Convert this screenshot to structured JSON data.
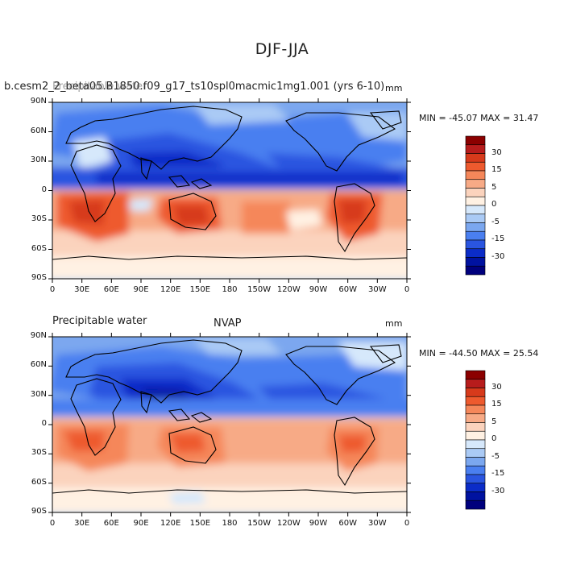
{
  "title": "DJF-JJA",
  "panels": [
    {
      "left_title": "Precipitable water",
      "center_title": "b.cesm2_2_beta05.B1850.f09_g17_ts10spl0macmic1mg1.001 (yrs 6-10)",
      "units": "mm",
      "min_max": "MIN = -45.07 MAX =  31.47"
    },
    {
      "left_title": "Precipitable water",
      "center_title": "NVAP",
      "units": "mm",
      "min_max": "MIN = -44.50 MAX =  25.54"
    }
  ],
  "lat_ticks": [
    "90N",
    "60N",
    "30N",
    "0",
    "30S",
    "60S",
    "90S"
  ],
  "lon_ticks": [
    "0",
    "30E",
    "60E",
    "90E",
    "120E",
    "150E",
    "180",
    "150W",
    "120W",
    "90W",
    "60W",
    "30W",
    "0"
  ],
  "colorbar": {
    "labels": [
      "30",
      "15",
      "5",
      "0",
      "-5",
      "-15",
      "-30"
    ],
    "colors": [
      "#8b0000",
      "#b71c1c",
      "#d73a1b",
      "#ee5a2e",
      "#f5875a",
      "#f7aa86",
      "#fbd3bd",
      "#fff1e3",
      "#d6e8fb",
      "#aacaf5",
      "#7ba7ef",
      "#4a7ff0",
      "#2a55e0",
      "#0b2cc8",
      "#0012a0",
      "#00007d"
    ]
  }
}
